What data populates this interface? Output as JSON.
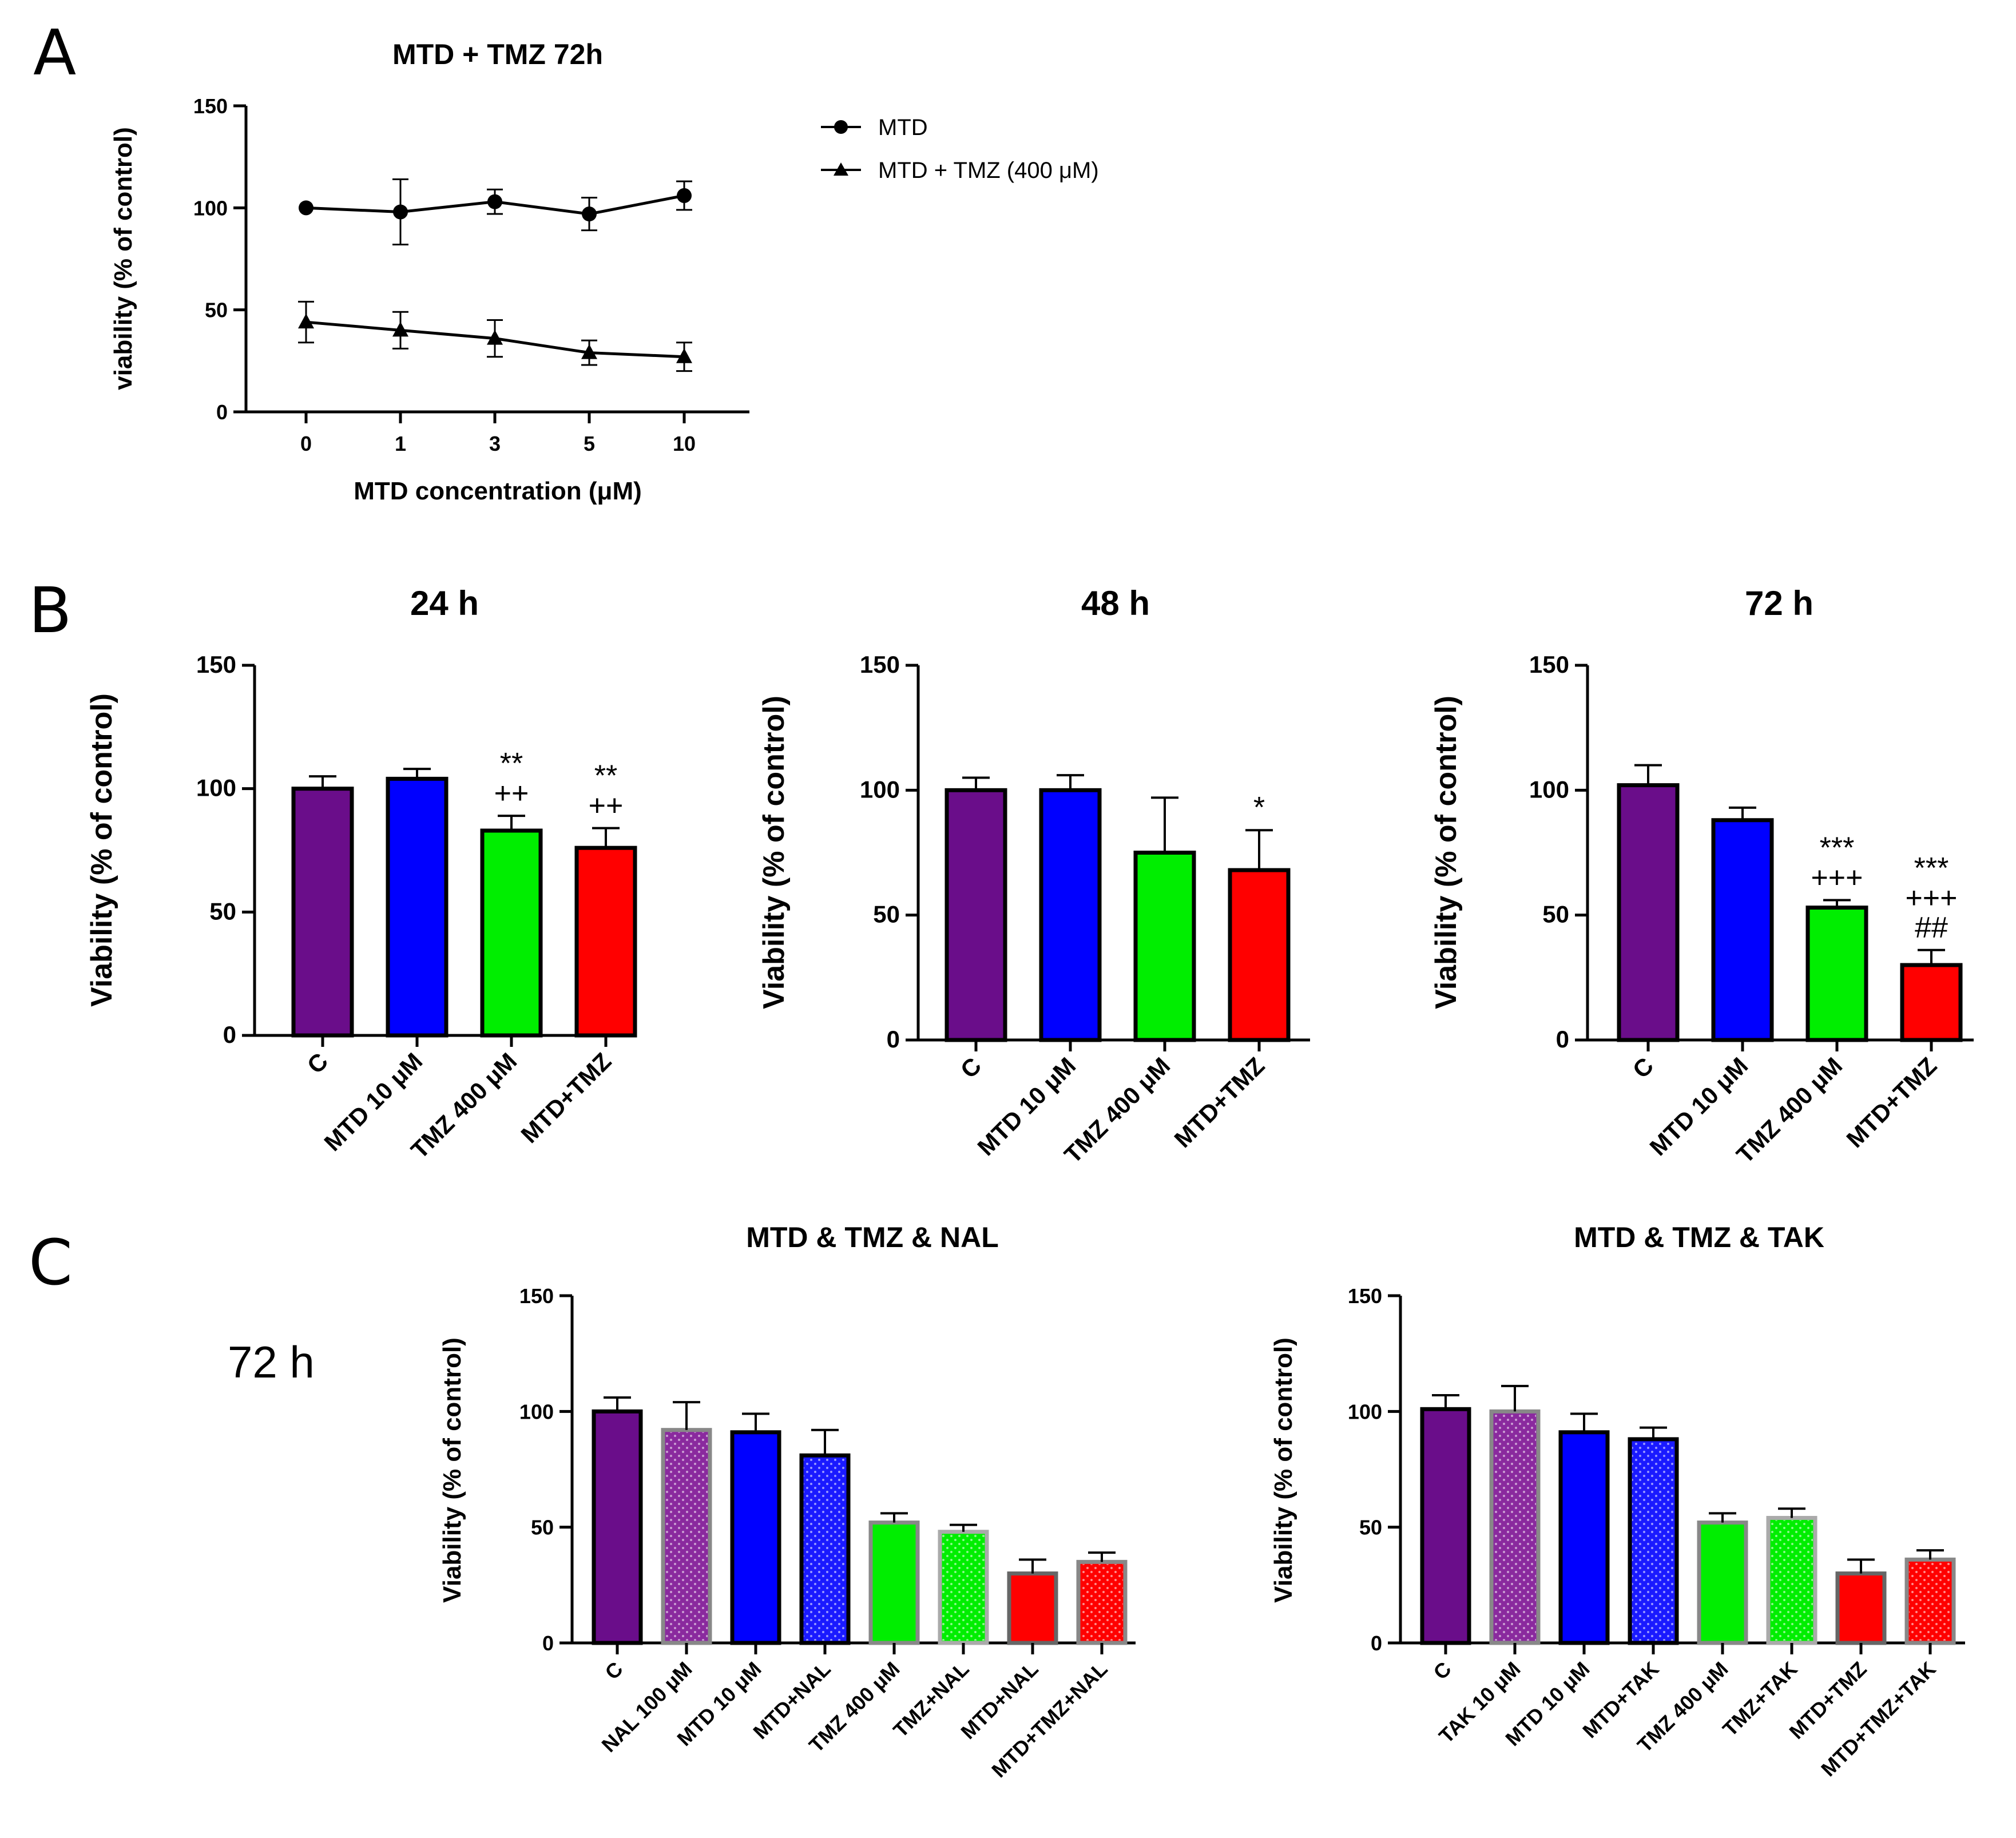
{
  "panel_letters": [
    "A",
    "B",
    "C"
  ],
  "side_label": "72 h",
  "chart_data": [
    {
      "id": "A",
      "type": "line",
      "title": "MTD + TMZ 72h",
      "xlabel": "MTD concentration (μM)",
      "ylabel": "viability (% of control)",
      "x": [
        "0",
        "1",
        "3",
        "5",
        "10"
      ],
      "ylim": [
        0,
        150
      ],
      "yticks": [
        "0",
        "50",
        "100",
        "150"
      ],
      "legend_position": "right",
      "series": [
        {
          "name": "MTD",
          "marker": "circle",
          "values": [
            100,
            98,
            103,
            97,
            106
          ],
          "errors": [
            0,
            16,
            6,
            8,
            7
          ]
        },
        {
          "name": "MTD + TMZ (400 μM)",
          "marker": "triangle",
          "values": [
            44,
            40,
            36,
            29,
            27
          ],
          "errors": [
            10,
            9,
            9,
            6,
            7
          ]
        }
      ]
    },
    {
      "id": "B1",
      "type": "bar",
      "title": "24 h",
      "ylabel": "Viability (% of control)",
      "ylim": [
        0,
        150
      ],
      "yticks": [
        "0",
        "50",
        "100",
        "150"
      ],
      "categories": [
        "C",
        "MTD 10 μM",
        "TMZ 400 μM",
        "MTD+TMZ"
      ],
      "values": [
        100,
        104,
        83,
        76
      ],
      "errors": [
        5,
        4,
        6,
        8
      ],
      "colors": [
        "#6a0d8a",
        "#0000ff",
        "#00ee00",
        "#ff0000"
      ],
      "annotations": [
        [],
        [],
        [
          "**",
          "++"
        ],
        [
          "**",
          "++"
        ]
      ]
    },
    {
      "id": "B2",
      "type": "bar",
      "title": "48 h",
      "ylabel": "Viability (% of control)",
      "ylim": [
        0,
        150
      ],
      "yticks": [
        "0",
        "50",
        "100",
        "150"
      ],
      "categories": [
        "C",
        "MTD 10 μM",
        "TMZ 400 μM",
        "MTD+TMZ"
      ],
      "values": [
        100,
        100,
        75,
        68
      ],
      "errors": [
        5,
        6,
        22,
        16
      ],
      "colors": [
        "#6a0d8a",
        "#0000ff",
        "#00ee00",
        "#ff0000"
      ],
      "annotations": [
        [],
        [],
        [],
        [
          "*"
        ]
      ]
    },
    {
      "id": "B3",
      "type": "bar",
      "title": "72 h",
      "ylabel": "Viability (% of control)",
      "ylim": [
        0,
        150
      ],
      "yticks": [
        "0",
        "50",
        "100",
        "150"
      ],
      "categories": [
        "C",
        "MTD 10 μM",
        "TMZ 400 μM",
        "MTD+TMZ"
      ],
      "values": [
        102,
        88,
        53,
        30
      ],
      "errors": [
        8,
        5,
        3,
        6
      ],
      "colors": [
        "#6a0d8a",
        "#0000ff",
        "#00ee00",
        "#ff0000"
      ],
      "annotations": [
        [],
        [],
        [
          "***",
          "+++"
        ],
        [
          "***",
          "+++",
          "##"
        ]
      ]
    },
    {
      "id": "C1",
      "type": "bar",
      "title": "MTD & TMZ & NAL",
      "ylabel": "Viability (% of control)",
      "ylim": [
        0,
        150
      ],
      "yticks": [
        "0",
        "50",
        "100",
        "150"
      ],
      "categories": [
        "C",
        "NAL 100 μM",
        "MTD 10 μM",
        "MTD+NAL",
        "TMZ 400 μM",
        "TMZ+NAL",
        "MTD+NAL",
        "MTD+TMZ+NAL"
      ],
      "values": [
        100,
        92,
        91,
        81,
        52,
        48,
        30,
        35
      ],
      "errors": [
        6,
        12,
        8,
        11,
        4,
        3,
        6,
        4
      ],
      "colors": [
        "#6a0d8a",
        "#8a2a9e",
        "#0000ff",
        "#1a1aff",
        "#00ee00",
        "#00ee00",
        "#ff0000",
        "#ff0000"
      ],
      "dotted": [
        false,
        true,
        false,
        true,
        false,
        true,
        false,
        true
      ],
      "border_colors": [
        "#000000",
        "#888888",
        "#000000",
        "#000000",
        "#888888",
        "#aaaaaa",
        "#666666",
        "#888888"
      ]
    },
    {
      "id": "C2",
      "type": "bar",
      "title": "MTD & TMZ & TAK",
      "ylabel": "Viability (% of control)",
      "ylim": [
        0,
        150
      ],
      "yticks": [
        "0",
        "50",
        "100",
        "150"
      ],
      "categories": [
        "C",
        "TAK 10 μM",
        "MTD 10 μM",
        "MTD+TAK",
        "TMZ 400 μM",
        "TMZ+TAK",
        "MTD+TMZ",
        "MTD+TMZ+TAK"
      ],
      "values": [
        101,
        100,
        91,
        88,
        52,
        54,
        30,
        36
      ],
      "errors": [
        6,
        11,
        8,
        5,
        4,
        4,
        6,
        4
      ],
      "colors": [
        "#6a0d8a",
        "#8a2a9e",
        "#0000ff",
        "#1a1aff",
        "#00ee00",
        "#00ee00",
        "#ff0000",
        "#ff0000"
      ],
      "dotted": [
        false,
        true,
        false,
        true,
        false,
        true,
        false,
        true
      ],
      "border_colors": [
        "#000000",
        "#888888",
        "#000000",
        "#000000",
        "#888888",
        "#aaaaaa",
        "#666666",
        "#888888"
      ]
    }
  ]
}
